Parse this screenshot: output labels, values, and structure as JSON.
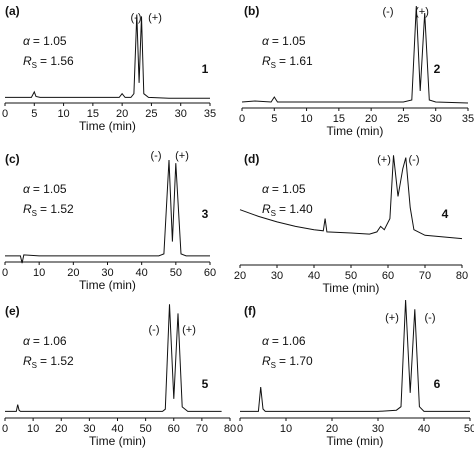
{
  "chart_data": [
    {
      "type": "line",
      "panel": "(a)",
      "alpha_symbol": "α",
      "alpha_value": "= 1.05",
      "rs_symbol": "R",
      "rs_subscript": "S",
      "rs_value": "= 1.56",
      "number": "1",
      "peak_labels": [
        "(-)",
        "(+)"
      ],
      "xlabel": "Time (min)",
      "color": "#111111",
      "xlim": [
        0,
        35
      ],
      "xticks": [
        0,
        5,
        10,
        15,
        20,
        25,
        30,
        35
      ],
      "ylim": [
        0,
        100
      ],
      "x": [
        0,
        4.5,
        5,
        5.3,
        6,
        10,
        15,
        19.5,
        20,
        20.5,
        21.5,
        22,
        22.5,
        22.9,
        23.3,
        23.7,
        24.5,
        28,
        35
      ],
      "values": [
        4,
        4,
        10,
        5,
        4,
        4,
        4,
        4,
        8,
        4,
        4,
        8,
        95,
        20,
        93,
        8,
        4,
        3,
        3
      ]
    },
    {
      "type": "line",
      "panel": "(b)",
      "alpha_symbol": "α",
      "alpha_value": "= 1.05",
      "rs_symbol": "R",
      "rs_subscript": "S",
      "rs_value": "= 1.61",
      "number": "2",
      "peak_labels": [
        "(-)",
        "(+)"
      ],
      "xlabel": "Time (min)",
      "color": "#111111",
      "xlim": [
        0,
        35
      ],
      "xticks": [
        0,
        5,
        10,
        15,
        20,
        25,
        30,
        35
      ],
      "ylim": [
        0,
        100
      ],
      "x": [
        0,
        2,
        4.5,
        5,
        5.5,
        10,
        15,
        20,
        25,
        26.3,
        27,
        27.6,
        28.3,
        29,
        30,
        35
      ],
      "values": [
        4,
        5,
        4,
        9,
        4,
        4,
        4,
        4,
        4,
        6,
        100,
        15,
        93,
        6,
        4,
        3
      ]
    },
    {
      "type": "line",
      "panel": "(c)",
      "alpha_symbol": "α",
      "alpha_value": "= 1.05",
      "rs_symbol": "R",
      "rs_subscript": "S",
      "rs_value": "= 1.52",
      "number": "3",
      "peak_labels": [
        "(-)",
        "(+)"
      ],
      "xlabel": "Time (min)",
      "color": "#111111",
      "xlim": [
        0,
        60
      ],
      "xticks": [
        0,
        10,
        20,
        30,
        40,
        50,
        60
      ],
      "ylim": [
        0,
        100
      ],
      "x": [
        0,
        4.5,
        5,
        5.5,
        10,
        20,
        30,
        40,
        45,
        46.5,
        48,
        49,
        50,
        51.5,
        53,
        60
      ],
      "values": [
        4,
        4,
        -3,
        5,
        4,
        4,
        4,
        4,
        4,
        6,
        98,
        18,
        95,
        6,
        4,
        4
      ]
    },
    {
      "type": "line",
      "panel": "(d)",
      "alpha_symbol": "α",
      "alpha_value": "= 1.05",
      "rs_symbol": "R",
      "rs_subscript": "S",
      "rs_value": "= 1.40",
      "number": "4",
      "peak_labels": [
        "(+)",
        "(-)"
      ],
      "xlabel": "Time (min)",
      "color": "#111111",
      "xlim": [
        20,
        80
      ],
      "xticks": [
        20,
        30,
        40,
        50,
        60,
        70,
        80
      ],
      "ylim": [
        0,
        100
      ],
      "x": [
        20,
        25,
        30,
        35,
        40,
        42.5,
        43,
        43.5,
        50,
        55,
        57,
        58,
        59,
        60.5,
        61.5,
        62.7,
        64,
        64.8,
        66,
        67,
        70,
        80
      ],
      "values": [
        48,
        42,
        37,
        33,
        30,
        29,
        40,
        28,
        27,
        26,
        28,
        33,
        30,
        40,
        97,
        60,
        85,
        95,
        50,
        30,
        25,
        22
      ]
    },
    {
      "type": "line",
      "panel": "(e)",
      "alpha_symbol": "α",
      "alpha_value": "= 1.06",
      "rs_symbol": "R",
      "rs_subscript": "S",
      "rs_value": "= 1.52",
      "number": "5",
      "peak_labels": [
        "(-)",
        "(+)"
      ],
      "xlabel": "Time (min)",
      "color": "#111111",
      "xlim": [
        0,
        80
      ],
      "xticks": [
        0,
        10,
        20,
        30,
        40,
        50,
        60,
        70,
        80
      ],
      "ylim": [
        0,
        100
      ],
      "x": [
        0,
        4,
        4.5,
        5,
        5.5,
        10,
        20,
        30,
        40,
        50,
        56,
        57,
        58.5,
        60,
        61.5,
        63,
        65,
        70,
        77
      ],
      "values": [
        4,
        4,
        10,
        5,
        4,
        4,
        4,
        4,
        4,
        4,
        4,
        6,
        98,
        15,
        90,
        8,
        4,
        4,
        4
      ]
    },
    {
      "type": "line",
      "panel": "(f)",
      "alpha_symbol": "α",
      "alpha_value": "= 1.06",
      "rs_symbol": "R",
      "rs_subscript": "S",
      "rs_value": "= 1.70",
      "number": "6",
      "peak_labels": [
        "(+)",
        "(-)"
      ],
      "xlabel": "Time (min)",
      "color": "#111111",
      "xlim": [
        0,
        50
      ],
      "xticks": [
        0,
        10,
        20,
        30,
        40,
        50
      ],
      "ylim": [
        0,
        100
      ],
      "x": [
        0,
        4,
        4.5,
        5,
        5.5,
        10,
        20,
        30,
        34,
        35,
        36,
        37,
        38,
        39,
        40,
        45,
        50
      ],
      "values": [
        4,
        4,
        25,
        6,
        4,
        4,
        4,
        4,
        5,
        8,
        100,
        20,
        92,
        8,
        4,
        4,
        4
      ]
    }
  ]
}
